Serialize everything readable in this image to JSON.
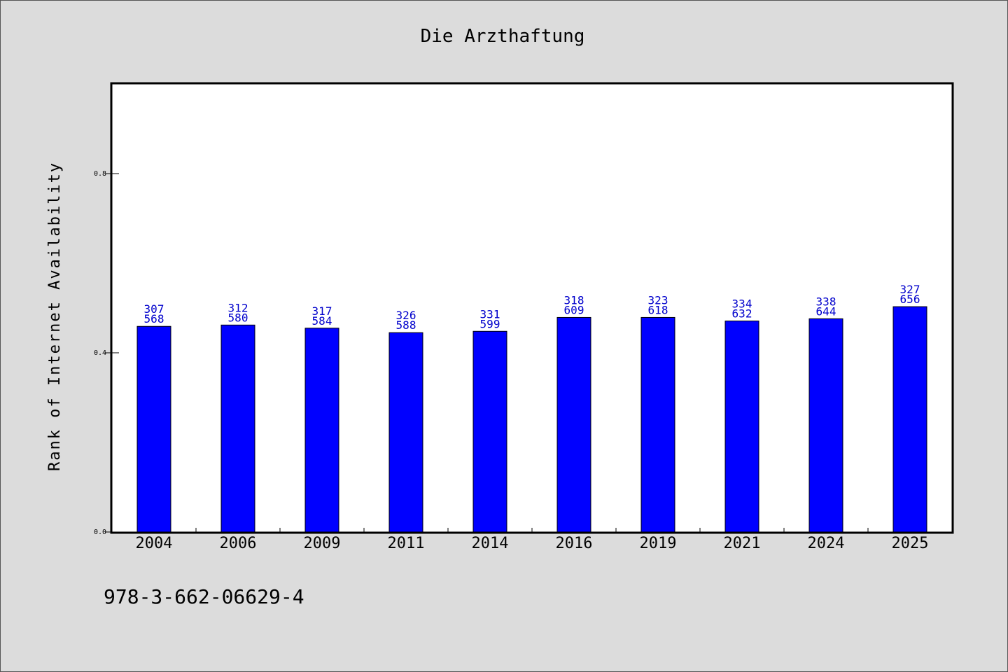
{
  "chart_data": {
    "type": "bar",
    "title": "Die Arzthaftung",
    "ylabel": "Rank of Internet Availability",
    "xlabel": "",
    "ylim": [
      0,
      1.0
    ],
    "yticks": [
      0.0,
      0.4,
      0.8
    ],
    "ytick_labels": [
      "0.0",
      "0.4",
      "0.8"
    ],
    "grid": false,
    "categories": [
      "2004",
      "2006",
      "2009",
      "2011",
      "2014",
      "2016",
      "2019",
      "2021",
      "2024",
      "2025"
    ],
    "values": [
      0.459,
      0.462,
      0.455,
      0.445,
      0.448,
      0.479,
      0.479,
      0.471,
      0.476,
      0.503
    ],
    "bar_labels": [
      [
        "307",
        "568"
      ],
      [
        "312",
        "580"
      ],
      [
        "317",
        "584"
      ],
      [
        "326",
        "588"
      ],
      [
        "331",
        "599"
      ],
      [
        "318",
        "609"
      ],
      [
        "323",
        "618"
      ],
      [
        "334",
        "632"
      ],
      [
        "338",
        "644"
      ],
      [
        "327",
        "656"
      ]
    ],
    "bar_color": "#0000ff",
    "label_color": "#0000cc"
  },
  "footer": {
    "isbn": "978-3-662-06629-4"
  }
}
